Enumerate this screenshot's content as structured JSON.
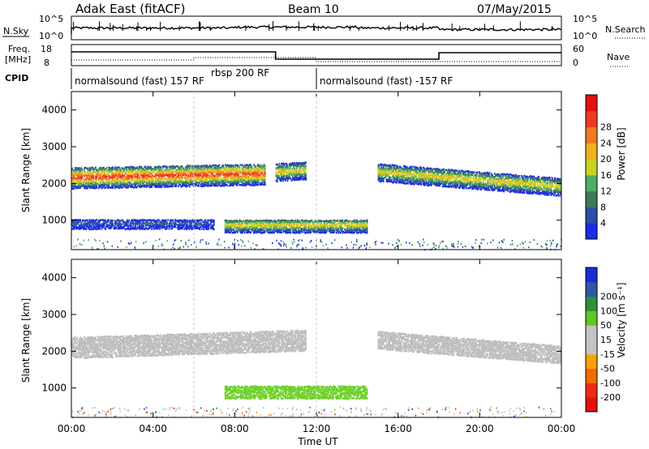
{
  "header": {
    "site": "Adak East (fitACF)",
    "beam": "Beam 10",
    "date": "07/May/2015"
  },
  "colors": {
    "power_scale": [
      "#1a2de6",
      "#2b4ea8",
      "#3d7a5a",
      "#4fae63",
      "#c9d31f",
      "#f0b020",
      "#f07a20",
      "#ee3b20",
      "#e41010"
    ],
    "velocity_scale": [
      "#1c2bd6",
      "#2c5aa6",
      "#2e8f3a",
      "#63c623",
      "#c4c4c4",
      "#c4c4c4",
      "#f6a300",
      "#f56a00",
      "#ee2a10",
      "#e41010"
    ],
    "velocity_echo": "#bdbdbd",
    "velocity_echo_positive": "#6ed12a"
  },
  "panels": {
    "nsky": {
      "left_label": "N.Sky",
      "right_label": "N.Search",
      "left_ticks": [
        "10^5",
        "10^0"
      ],
      "right_ticks": [
        "10^5",
        "10^0"
      ]
    },
    "freq": {
      "left_label_line1": "Freq.",
      "left_label_line2": "[MHz]",
      "left_ticks": [
        "18",
        "8"
      ],
      "right_label": "Nave",
      "right_ticks": [
        "60",
        "0"
      ]
    },
    "cpid": {
      "label": "CPID",
      "modes": [
        {
          "name": "normalsound (fast) 157 RF",
          "start": "00:00",
          "end": "06:00"
        },
        {
          "name": "rbsp 200 RF",
          "start": "06:00",
          "end": "12:00"
        },
        {
          "name": "normalsound (fast) -157 RF",
          "start": "12:00",
          "end": "24:00"
        }
      ]
    }
  },
  "chart_data": [
    {
      "type": "heatmap",
      "title": "",
      "ylabel": "Slant Range [km]",
      "yticks": [
        "1000",
        "2000",
        "3000",
        "4000"
      ],
      "ylim": [
        200,
        4500
      ],
      "colorbar_label": "Power [dB]",
      "colorbar_ticks": [
        "4",
        "8",
        "12",
        "16",
        "20",
        "24",
        "28"
      ],
      "clim": [
        0,
        30
      ],
      "regions": [
        {
          "t_start": 0.0,
          "t_end": 9.5,
          "range_center_start": 2150,
          "range_center_end": 2250,
          "width_km": 600,
          "peak_db": 28
        },
        {
          "t_start": 10.0,
          "t_end": 11.5,
          "range_center_start": 2300,
          "range_center_end": 2350,
          "width_km": 500,
          "peak_db": 20
        },
        {
          "t_start": 0.0,
          "t_end": 7.0,
          "range_center_start": 900,
          "range_center_end": 900,
          "width_km": 300,
          "peak_db": 8
        },
        {
          "t_start": 7.5,
          "t_end": 14.5,
          "range_center_start": 850,
          "range_center_end": 850,
          "width_km": 400,
          "peak_db": 20
        },
        {
          "t_start": 15.0,
          "t_end": 24.0,
          "range_center_start": 2300,
          "range_center_end": 1900,
          "width_km": 500,
          "peak_db": 20
        }
      ]
    },
    {
      "type": "heatmap",
      "title": "",
      "xlabel": "Time UT",
      "xticks": [
        "00:00",
        "04:00",
        "08:00",
        "12:00",
        "16:00",
        "20:00",
        "00:00"
      ],
      "ylabel": "Slant Range [km]",
      "yticks": [
        "1000",
        "2000",
        "3000",
        "4000"
      ],
      "ylim": [
        200,
        4500
      ],
      "colorbar_label": "Velocity [m s⁻¹]",
      "colorbar_ticks": [
        "200",
        "100",
        "50",
        "15",
        "-15",
        "-50",
        "-100",
        "-200"
      ],
      "clim": [
        -250,
        250
      ],
      "regions": [
        {
          "t_start": 0.0,
          "t_end": 11.5,
          "range_center_start": 2100,
          "range_center_end": 2300,
          "width_km": 600,
          "velocity": 0
        },
        {
          "t_start": 7.5,
          "t_end": 14.5,
          "range_center_start": 900,
          "range_center_end": 900,
          "width_km": 400,
          "velocity": 40
        },
        {
          "t_start": 15.0,
          "t_end": 24.0,
          "range_center_start": 2300,
          "range_center_end": 1900,
          "width_km": 500,
          "velocity": 0
        }
      ]
    }
  ]
}
